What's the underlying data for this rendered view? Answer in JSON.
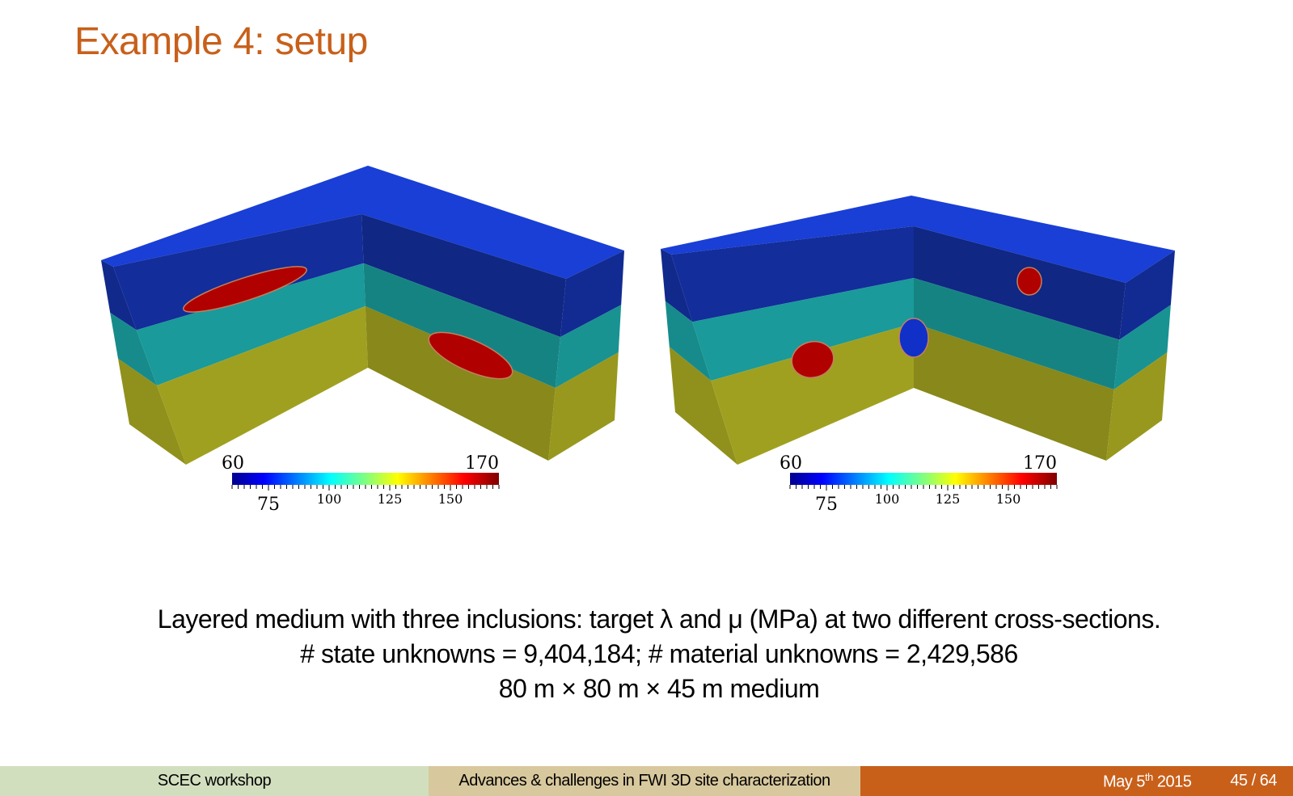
{
  "slide": {
    "title": "Example 4: setup",
    "caption_lines": [
      "Layered medium with three inclusions: target λ and μ (MPa) at two different cross-sections.",
      "# state unknowns = 9,404,184; # material unknowns = 2,429,586",
      "80 m × 80 m × 45 m medium"
    ]
  },
  "figures": [
    {
      "colorbar": {
        "min_label": "60",
        "max_label": "170",
        "tick_labels": [
          "75",
          "100",
          "125",
          "150"
        ],
        "range": [
          60,
          170
        ],
        "colormap": "jet"
      }
    },
    {
      "colorbar": {
        "min_label": "60",
        "max_label": "170",
        "tick_labels": [
          "75",
          "100",
          "125",
          "150"
        ],
        "range": [
          60,
          170
        ],
        "colormap": "jet"
      }
    }
  ],
  "colors": {
    "title": "#c8601a",
    "top_layer": "#1a3fd6",
    "middle_layer": "#1a9a9a",
    "bottom_layer": "#a0a020",
    "inclusion_high": "#b00000",
    "inclusion_low": "#1030c8"
  },
  "footer": {
    "event": "SCEC workshop",
    "talk_title": "Advances & challenges in FWI 3D site characterization",
    "date_prefix": "May 5",
    "date_sup": "th",
    "date_year": "2015",
    "page": "45 / 64"
  }
}
